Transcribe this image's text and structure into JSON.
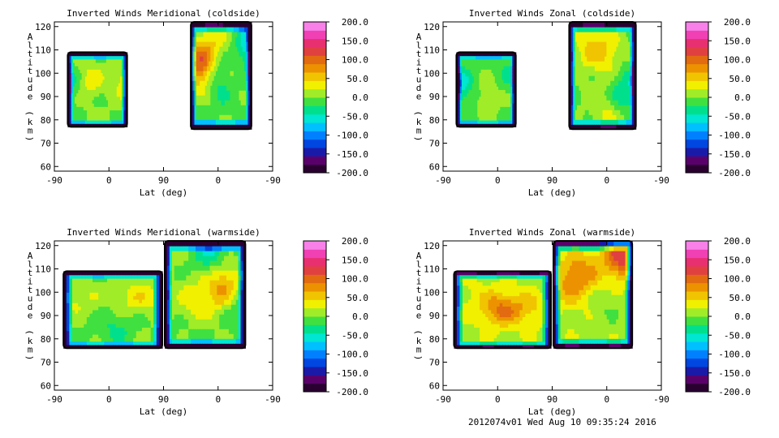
{
  "footer": "2012074v01 Wed Aug 10 09:35:24 2016",
  "colors": {
    "scale": [
      "#2a0030",
      "#5a006a",
      "#1a1aa8",
      "#0046e0",
      "#0080ff",
      "#00c0ff",
      "#00e6d2",
      "#00e08c",
      "#40e040",
      "#a0ec28",
      "#f0f000",
      "#f0c400",
      "#ec9200",
      "#e26a10",
      "#e04040",
      "#e83070",
      "#f040b4",
      "#f880e8"
    ],
    "contour_line": "#000000",
    "axis": "#000000"
  },
  "chart_data": [
    {
      "type": "heatmap",
      "title": "Inverted Winds Meridional (coldside)",
      "xlabel": "Lat (deg)",
      "ylabel": "Altitude (km)",
      "x_tick_labels": [
        "-90",
        "0",
        "90",
        "0",
        "-90"
      ],
      "y_ticks": [
        60,
        70,
        80,
        90,
        100,
        110,
        120
      ],
      "ylim": [
        58,
        122
      ],
      "colorbar_ticks": [
        "200.0",
        "150.0",
        "100.0",
        "50.0",
        "0.0",
        "-50.0",
        "-100.0",
        "-150.0",
        "-200.0"
      ],
      "value_range": [
        -200,
        200
      ],
      "regions": [
        {
          "x_range": [
            -68,
            30
          ],
          "y_range": [
            77,
            109
          ],
          "base": 0,
          "blobs": [
            [
              -30,
              97,
              35
            ],
            [
              28,
              97,
              40
            ],
            [
              -70,
              95,
              -40
            ]
          ]
        },
        {
          "x_range": [
            135,
            235
          ],
          "y_range": [
            76,
            122
          ],
          "base": -5,
          "blobs": [
            [
              150,
              104,
              110
            ],
            [
              175,
              115,
              40
            ],
            [
              185,
              98,
              -35
            ],
            [
              205,
              102,
              20
            ],
            [
              230,
              112,
              -60
            ]
          ]
        }
      ]
    },
    {
      "type": "heatmap",
      "title": "Inverted Winds Zonal (coldside)",
      "xlabel": "Lat (deg)",
      "ylabel": "Altitude (km)",
      "x_tick_labels": [
        "-90",
        "0",
        "90",
        "0",
        "-90"
      ],
      "y_ticks": [
        60,
        70,
        80,
        90,
        100,
        110,
        120
      ],
      "ylim": [
        58,
        122
      ],
      "colorbar_ticks": [
        "200.0",
        "150.0",
        "100.0",
        "50.0",
        "0.0",
        "-50.0",
        "-100.0",
        "-150.0",
        "-200.0"
      ],
      "value_range": [
        -200,
        200
      ],
      "regions": [
        {
          "x_range": [
            -68,
            30
          ],
          "y_range": [
            77,
            109
          ],
          "base": -5,
          "blobs": [
            [
              -15,
              90,
              20
            ],
            [
              20,
              100,
              -20
            ],
            [
              -65,
              95,
              -60
            ]
          ]
        },
        {
          "x_range": [
            118,
            228
          ],
          "y_range": [
            76,
            122
          ],
          "base": 0,
          "blobs": [
            [
              155,
              112,
              50
            ],
            [
              185,
              108,
              35
            ],
            [
              200,
              92,
              -25
            ],
            [
              180,
              82,
              30
            ],
            [
              220,
              95,
              -30
            ]
          ]
        }
      ]
    },
    {
      "type": "heatmap",
      "title": "Inverted Winds Meridional (warmside)",
      "xlabel": "Lat (deg)",
      "ylabel": "Altitude (km)",
      "x_tick_labels": [
        "-90",
        "0",
        "90",
        "0",
        "-90"
      ],
      "y_ticks": [
        60,
        70,
        80,
        90,
        100,
        110,
        120
      ],
      "ylim": [
        58,
        122
      ],
      "colorbar_ticks": [
        "200.0",
        "150.0",
        "100.0",
        "50.0",
        "0.0",
        "-50.0",
        "-100.0",
        "-150.0",
        "-200.0"
      ],
      "value_range": [
        -200,
        200
      ],
      "regions": [
        {
          "x_range": [
            -75,
            88
          ],
          "y_range": [
            76,
            109
          ],
          "base": 0,
          "blobs": [
            [
              -55,
              98,
              30
            ],
            [
              50,
              98,
              40
            ],
            [
              10,
              85,
              -25
            ]
          ]
        },
        {
          "x_range": [
            92,
            225
          ],
          "y_range": [
            76,
            122
          ],
          "base": 0,
          "blobs": [
            [
              190,
              102,
              85
            ],
            [
              140,
              95,
              40
            ],
            [
              170,
              118,
              -50
            ],
            [
              210,
              95,
              -40
            ],
            [
              130,
              85,
              -15
            ]
          ]
        }
      ]
    },
    {
      "type": "heatmap",
      "title": "Inverted Winds Zonal (warmside)",
      "xlabel": "Lat (deg)",
      "ylabel": "Altitude (km)",
      "x_tick_labels": [
        "-90",
        "0",
        "90",
        "0",
        "-90"
      ],
      "y_ticks": [
        60,
        70,
        80,
        90,
        100,
        110,
        120
      ],
      "ylim": [
        58,
        122
      ],
      "colorbar_ticks": [
        "200.0",
        "150.0",
        "100.0",
        "50.0",
        "0.0",
        "-50.0",
        "-100.0",
        "-150.0",
        "-200.0"
      ],
      "value_range": [
        -200,
        200
      ],
      "regions": [
        {
          "x_range": [
            -72,
            88
          ],
          "y_range": [
            76,
            109
          ],
          "base": 15,
          "blobs": [
            [
              5,
              93,
              75
            ],
            [
              55,
              93,
              30
            ],
            [
              -50,
              100,
              10
            ]
          ]
        },
        {
          "x_range": [
            92,
            222
          ],
          "y_range": [
            76,
            122
          ],
          "base": 15,
          "blobs": [
            [
              120,
              105,
              60
            ],
            [
              205,
              116,
              110
            ],
            [
              150,
              110,
              40
            ],
            [
              180,
              95,
              -15
            ]
          ]
        }
      ]
    }
  ]
}
